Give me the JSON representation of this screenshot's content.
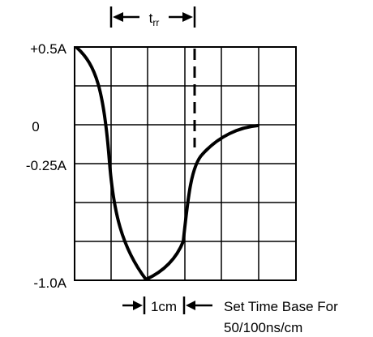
{
  "y_labels": {
    "plus_half_amp": "+0.5A",
    "zero": "0",
    "minus_quarter_amp": "-0.25A",
    "minus_one_amp": "-1.0A"
  },
  "trr_label": "t",
  "trr_subscript": "rr",
  "one_cm_label": "1cm",
  "note": {
    "line1": "Set Time Base For",
    "line2": "50/100ns/cm"
  }
}
